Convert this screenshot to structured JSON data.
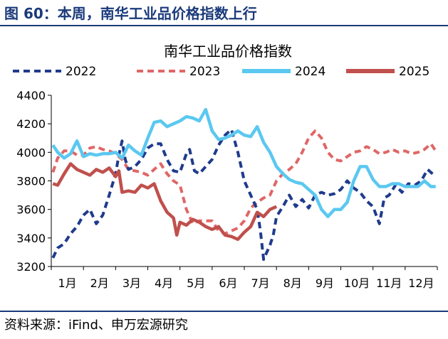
{
  "figure_title": "图 60：本周，南华工业品价格指数上行",
  "source": "资料来源：iFind、申万宏源研究",
  "colors": {
    "title_blue": "#1a3a7a",
    "s2022": "#1f3b8c",
    "s2023": "#e06666",
    "s2024": "#5bc8f0",
    "s2025": "#c0504d"
  },
  "chart_data": {
    "type": "line",
    "title": "南华工业品价格指数",
    "xlabel": "",
    "ylabel": "",
    "ylim": [
      3200,
      4400
    ],
    "yticks": [
      3200,
      3400,
      3600,
      3800,
      4000,
      4200,
      4400
    ],
    "xlim": [
      0,
      12
    ],
    "month_labels": [
      "1月",
      "2月",
      "3月",
      "4月",
      "5月",
      "6月",
      "7月",
      "8月",
      "9月",
      "10月",
      "11月",
      "12月"
    ],
    "legend_position": "top",
    "grid": false,
    "series": [
      {
        "name": "2022",
        "style": "dashed",
        "x": [
          0.05,
          0.2,
          0.4,
          0.6,
          0.8,
          1.0,
          1.2,
          1.4,
          1.6,
          1.8,
          2.0,
          2.1,
          2.2,
          2.3,
          2.4,
          2.6,
          2.8,
          3.0,
          3.2,
          3.4,
          3.6,
          3.8,
          4.0,
          4.2,
          4.3,
          4.45,
          4.6,
          4.8,
          5.0,
          5.2,
          5.4,
          5.6,
          5.8,
          6.0,
          6.2,
          6.4,
          6.5,
          6.6,
          6.8,
          6.9,
          7.0,
          7.2,
          7.4,
          7.6,
          7.8,
          8.0,
          8.2,
          8.4,
          8.6,
          8.8,
          9.0,
          9.2,
          9.4,
          9.6,
          9.8,
          10.0,
          10.2,
          10.35,
          10.5,
          10.7,
          10.9,
          11.1,
          11.3,
          11.5,
          11.7,
          11.9
        ],
        "values": [
          3260,
          3330,
          3360,
          3430,
          3480,
          3560,
          3600,
          3500,
          3560,
          3700,
          3850,
          3980,
          4080,
          3950,
          3880,
          3900,
          3950,
          4030,
          4060,
          4060,
          3950,
          3870,
          3860,
          3990,
          4020,
          3870,
          3850,
          3900,
          3950,
          4050,
          4120,
          4160,
          4000,
          3800,
          3700,
          3600,
          3450,
          3250,
          3350,
          3420,
          3550,
          3620,
          3700,
          3620,
          3670,
          3610,
          3700,
          3720,
          3700,
          3710,
          3740,
          3800,
          3750,
          3720,
          3660,
          3620,
          3500,
          3680,
          3700,
          3770,
          3720,
          3780,
          3770,
          3800,
          3880,
          3840
        ]
      },
      {
        "name": "2023",
        "style": "dashed",
        "x": [
          0.05,
          0.2,
          0.4,
          0.6,
          0.8,
          1.0,
          1.2,
          1.4,
          1.6,
          1.8,
          2.0,
          2.2,
          2.4,
          2.6,
          2.8,
          3.0,
          3.2,
          3.4,
          3.6,
          3.8,
          4.0,
          4.2,
          4.4,
          4.6,
          4.8,
          5.0,
          5.2,
          5.4,
          5.6,
          5.8,
          6.0,
          6.2,
          6.4,
          6.6,
          6.8,
          7.0,
          7.2,
          7.4,
          7.6,
          7.8,
          8.0,
          8.2,
          8.4,
          8.6,
          8.8,
          9.0,
          9.2,
          9.4,
          9.6,
          9.8,
          10.0,
          10.2,
          10.4,
          10.6,
          10.8,
          11.0,
          11.2,
          11.4,
          11.6,
          11.8,
          11.95
        ],
        "values": [
          3860,
          3960,
          4010,
          4010,
          3980,
          3980,
          4030,
          4040,
          4020,
          4010,
          3990,
          3950,
          3880,
          3870,
          3860,
          3840,
          3880,
          3920,
          3850,
          3800,
          3770,
          3600,
          3500,
          3520,
          3520,
          3520,
          3450,
          3430,
          3450,
          3470,
          3520,
          3610,
          3650,
          3680,
          3700,
          3800,
          3850,
          3880,
          3920,
          4000,
          4100,
          4150,
          4100,
          4000,
          3950,
          3940,
          3970,
          4000,
          4010,
          4040,
          4020,
          3990,
          4000,
          4020,
          4000,
          4010,
          3990,
          4000,
          4020,
          4060,
          4010
        ]
      },
      {
        "name": "2024",
        "style": "solid",
        "x": [
          0.05,
          0.2,
          0.4,
          0.6,
          0.8,
          1.0,
          1.2,
          1.4,
          1.6,
          1.8,
          2.0,
          2.2,
          2.4,
          2.6,
          2.8,
          3.0,
          3.2,
          3.4,
          3.6,
          3.8,
          4.0,
          4.2,
          4.4,
          4.6,
          4.8,
          5.0,
          5.2,
          5.4,
          5.6,
          5.8,
          6.0,
          6.2,
          6.4,
          6.6,
          6.8,
          7.0,
          7.2,
          7.4,
          7.6,
          7.8,
          8.0,
          8.2,
          8.4,
          8.6,
          8.8,
          9.0,
          9.2,
          9.4,
          9.6,
          9.8,
          10.0,
          10.2,
          10.4,
          10.6,
          10.8,
          11.0,
          11.2,
          11.4,
          11.6,
          11.8,
          11.95
        ],
        "values": [
          4050,
          4000,
          3960,
          3990,
          4080,
          3970,
          3990,
          3980,
          3990,
          3990,
          4000,
          3960,
          4050,
          4010,
          3980,
          4100,
          4210,
          4220,
          4180,
          4200,
          4220,
          4250,
          4240,
          4220,
          4300,
          4150,
          4090,
          4100,
          4120,
          4150,
          4120,
          4110,
          4180,
          4070,
          4000,
          3900,
          3850,
          3810,
          3790,
          3780,
          3740,
          3700,
          3600,
          3550,
          3600,
          3600,
          3650,
          3800,
          3900,
          3900,
          3810,
          3760,
          3760,
          3780,
          3780,
          3760,
          3760,
          3760,
          3800,
          3760,
          3760
        ]
      },
      {
        "name": "2025",
        "style": "solid",
        "x": [
          0.05,
          0.2,
          0.4,
          0.6,
          0.8,
          1.0,
          1.2,
          1.4,
          1.6,
          1.8,
          2.0,
          2.1,
          2.2,
          2.4,
          2.6,
          2.8,
          3.0,
          3.2,
          3.4,
          3.6,
          3.8,
          3.9,
          4.0,
          4.2,
          4.4,
          4.6,
          4.8,
          5.0,
          5.2,
          5.4,
          5.6,
          5.8,
          6.0,
          6.2,
          6.4,
          6.6,
          6.8,
          7.0
        ],
        "values": [
          3780,
          3770,
          3850,
          3920,
          3880,
          3860,
          3840,
          3880,
          3860,
          3890,
          3830,
          3870,
          3720,
          3730,
          3720,
          3770,
          3750,
          3780,
          3660,
          3580,
          3540,
          3420,
          3510,
          3490,
          3530,
          3510,
          3480,
          3460,
          3480,
          3420,
          3410,
          3390,
          3440,
          3480,
          3580,
          3550,
          3600,
          3620
        ]
      }
    ]
  }
}
